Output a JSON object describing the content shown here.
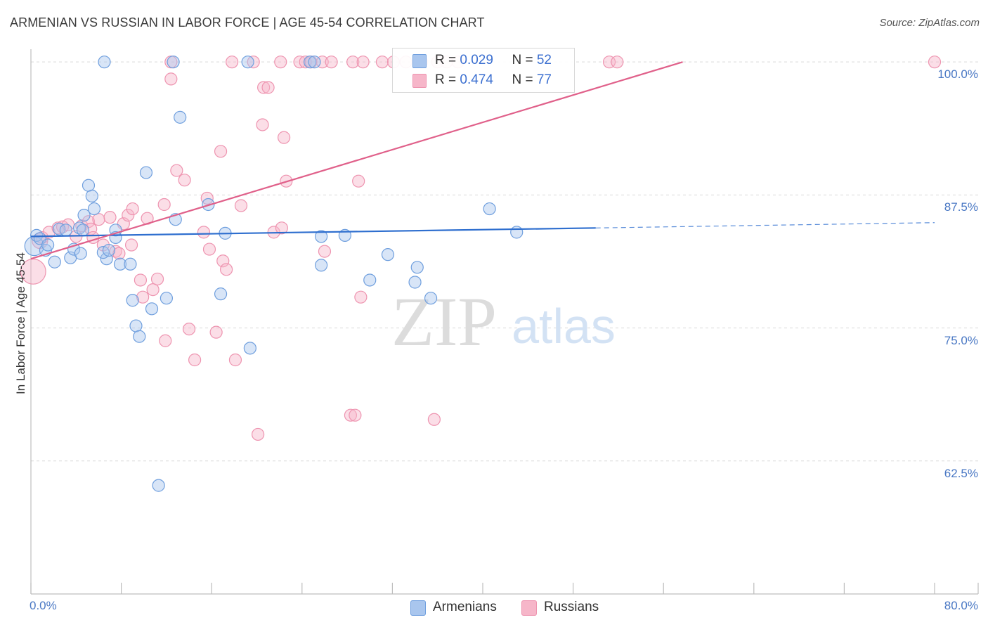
{
  "title": "ARMENIAN VS RUSSIAN IN LABOR FORCE | AGE 45-54 CORRELATION CHART",
  "source": "Source: ZipAtlas.com",
  "watermark": {
    "zip": "ZIP",
    "atlas": "atlas"
  },
  "colors": {
    "armenian_fill": "#a9c6ee",
    "armenian_stroke": "#6f9fde",
    "armenian_line": "#2f6fcf",
    "russian_fill": "#f6b6c9",
    "russian_stroke": "#ee94b0",
    "russian_line": "#e0608a",
    "axis_text": "#4a78c4",
    "grid": "#d9d9d9"
  },
  "legend": {
    "armenians": {
      "r_label": "R = ",
      "r_value": "0.029",
      "n_label": "N = ",
      "n_value": "52"
    },
    "russians": {
      "r_label": "R = ",
      "r_value": "0.474",
      "n_label": "N = ",
      "n_value": "77"
    }
  },
  "bottom_legend": {
    "armenians": "Armenians",
    "russians": "Russians"
  },
  "chart_data": {
    "type": "scatter",
    "title": "ARMENIAN VS RUSSIAN IN LABOR FORCE | AGE 45-54 CORRELATION CHART",
    "xlabel": "",
    "ylabel": "In Labor Force | Age 45-54",
    "xlim": [
      0,
      80
    ],
    "ylim": [
      50,
      101.2
    ],
    "x_tick_labels": [
      {
        "value": 0,
        "label": "0.0%"
      },
      {
        "value": 80,
        "label": "80.0%"
      }
    ],
    "y_tick_labels": [
      {
        "value": 100,
        "label": "100.0%"
      },
      {
        "value": 87.5,
        "label": "87.5%"
      },
      {
        "value": 75,
        "label": "75.0%"
      },
      {
        "value": 62.5,
        "label": "62.5%"
      }
    ],
    "series": [
      {
        "name": "Armenians",
        "r": 0.029,
        "n": 52,
        "trend": {
          "x0": 0,
          "y0": 83.6,
          "x1": 50,
          "y1": 84.4,
          "dash_to_x": 80,
          "dash_to_y": 84.9
        },
        "points": [
          [
            0.3,
            82.7,
            1.6
          ],
          [
            0.5,
            83.7,
            1
          ],
          [
            0.8,
            83.4,
            1
          ],
          [
            1.3,
            82.3,
            1
          ],
          [
            1.5,
            82.8,
            1
          ],
          [
            2.1,
            81.2,
            1
          ],
          [
            2.5,
            84.3,
            1
          ],
          [
            3.1,
            84.2,
            1
          ],
          [
            3.5,
            81.6,
            1
          ],
          [
            3.8,
            82.4,
            1
          ],
          [
            4.4,
            82.0,
            1
          ],
          [
            4.3,
            84.4,
            1
          ],
          [
            4.6,
            84.2,
            1
          ],
          [
            4.7,
            85.6,
            1
          ],
          [
            5.1,
            88.4,
            1
          ],
          [
            5.4,
            87.4,
            1
          ],
          [
            5.6,
            86.2,
            1
          ],
          [
            6.7,
            81.5,
            1
          ],
          [
            6.4,
            82.1,
            1
          ],
          [
            6.9,
            82.3,
            1
          ],
          [
            7.5,
            84.2,
            1
          ],
          [
            7.5,
            83.5,
            1
          ],
          [
            7.9,
            81.0,
            1
          ],
          [
            8.8,
            81.0,
            1
          ],
          [
            9.0,
            77.6,
            1
          ],
          [
            9.3,
            75.2,
            1
          ],
          [
            9.6,
            74.2,
            1
          ],
          [
            10.2,
            89.6,
            1
          ],
          [
            10.7,
            76.8,
            1
          ],
          [
            11.3,
            60.2,
            1
          ],
          [
            12.0,
            77.8,
            1
          ],
          [
            12.8,
            85.2,
            1
          ],
          [
            13.2,
            94.8,
            1
          ],
          [
            15.7,
            86.6,
            1
          ],
          [
            16.8,
            78.2,
            1
          ],
          [
            17.2,
            83.9,
            1
          ],
          [
            19.4,
            73.1,
            1
          ],
          [
            19.2,
            100,
            1
          ],
          [
            25.7,
            83.6,
            1
          ],
          [
            25.7,
            80.9,
            1
          ],
          [
            27.8,
            83.7,
            1
          ],
          [
            30.0,
            79.5,
            1
          ],
          [
            31.6,
            81.9,
            1
          ],
          [
            34.0,
            79.3,
            1
          ],
          [
            34.2,
            80.7,
            1
          ],
          [
            35.4,
            77.8,
            1
          ],
          [
            40.6,
            86.2,
            1
          ],
          [
            43.0,
            84.0,
            1
          ],
          [
            6.5,
            100,
            1
          ],
          [
            12.6,
            100,
            1
          ],
          [
            24.7,
            100,
            1
          ],
          [
            25.1,
            100,
            1
          ]
        ]
      },
      {
        "name": "Russians",
        "r": 0.474,
        "n": 77,
        "trend": {
          "x0": 0,
          "y0": 81.5,
          "x1": 57.7,
          "y1": 100
        },
        "points": [
          [
            0.2,
            80.3,
            2.1
          ],
          [
            0.8,
            83.2,
            1.3
          ],
          [
            1.0,
            83.5,
            1
          ],
          [
            1.6,
            84.0,
            1
          ],
          [
            2.4,
            84.4,
            1
          ],
          [
            2.8,
            84.5,
            1
          ],
          [
            3.3,
            84.7,
            1
          ],
          [
            4.0,
            83.6,
            1
          ],
          [
            4.5,
            84.6,
            1
          ],
          [
            5.1,
            85.0,
            1
          ],
          [
            5.3,
            84.3,
            1
          ],
          [
            5.5,
            83.5,
            1
          ],
          [
            6.0,
            85.2,
            1
          ],
          [
            6.4,
            82.8,
            1
          ],
          [
            7.0,
            85.4,
            1
          ],
          [
            7.5,
            82.2,
            1
          ],
          [
            7.8,
            82.0,
            1
          ],
          [
            8.2,
            84.8,
            1
          ],
          [
            8.6,
            85.6,
            1
          ],
          [
            8.9,
            82.8,
            1
          ],
          [
            9.0,
            86.2,
            1
          ],
          [
            9.7,
            79.5,
            1
          ],
          [
            9.9,
            77.9,
            1
          ],
          [
            10.3,
            85.3,
            1
          ],
          [
            10.8,
            78.6,
            1
          ],
          [
            11.2,
            79.6,
            1
          ],
          [
            11.8,
            86.6,
            1
          ],
          [
            11.9,
            73.8,
            1
          ],
          [
            12.4,
            98.4,
            1
          ],
          [
            12.9,
            89.8,
            1
          ],
          [
            13.6,
            88.9,
            1
          ],
          [
            14.0,
            74.9,
            1
          ],
          [
            14.5,
            72.0,
            1
          ],
          [
            15.3,
            84.0,
            1
          ],
          [
            15.6,
            87.2,
            1
          ],
          [
            15.8,
            82.4,
            1
          ],
          [
            16.4,
            74.6,
            1
          ],
          [
            16.8,
            91.6,
            1
          ],
          [
            17.0,
            81.3,
            1
          ],
          [
            17.3,
            80.5,
            1
          ],
          [
            18.1,
            72.0,
            1
          ],
          [
            18.6,
            86.5,
            1
          ],
          [
            20.1,
            65.0,
            1
          ],
          [
            20.5,
            94.1,
            1
          ],
          [
            20.6,
            97.6,
            1
          ],
          [
            21.0,
            97.6,
            1
          ],
          [
            21.5,
            84.0,
            1
          ],
          [
            22.2,
            84.4,
            1
          ],
          [
            22.4,
            92.9,
            1
          ],
          [
            22.6,
            88.8,
            1
          ],
          [
            26.0,
            82.2,
            1
          ],
          [
            28.3,
            66.8,
            1
          ],
          [
            28.7,
            66.8,
            1
          ],
          [
            29.0,
            88.8,
            1
          ],
          [
            29.2,
            77.9,
            1
          ],
          [
            35.7,
            66.4,
            1
          ],
          [
            12.4,
            100,
            1
          ],
          [
            17.8,
            100,
            1
          ],
          [
            19.7,
            100,
            1
          ],
          [
            22.1,
            100,
            1
          ],
          [
            23.8,
            100,
            1
          ],
          [
            24.3,
            100,
            1
          ],
          [
            24.8,
            100,
            1
          ],
          [
            25.8,
            100,
            1
          ],
          [
            26.6,
            100,
            1
          ],
          [
            28.5,
            100,
            1
          ],
          [
            29.4,
            100,
            1
          ],
          [
            31.1,
            100,
            1
          ],
          [
            32.1,
            100,
            1
          ],
          [
            33.2,
            100,
            1
          ],
          [
            34.6,
            100,
            1
          ],
          [
            36.0,
            100,
            1
          ],
          [
            36.8,
            100,
            1
          ],
          [
            37.8,
            100,
            1
          ],
          [
            51.2,
            100,
            1
          ],
          [
            51.9,
            100,
            1
          ],
          [
            80.0,
            100,
            1
          ]
        ]
      }
    ]
  }
}
